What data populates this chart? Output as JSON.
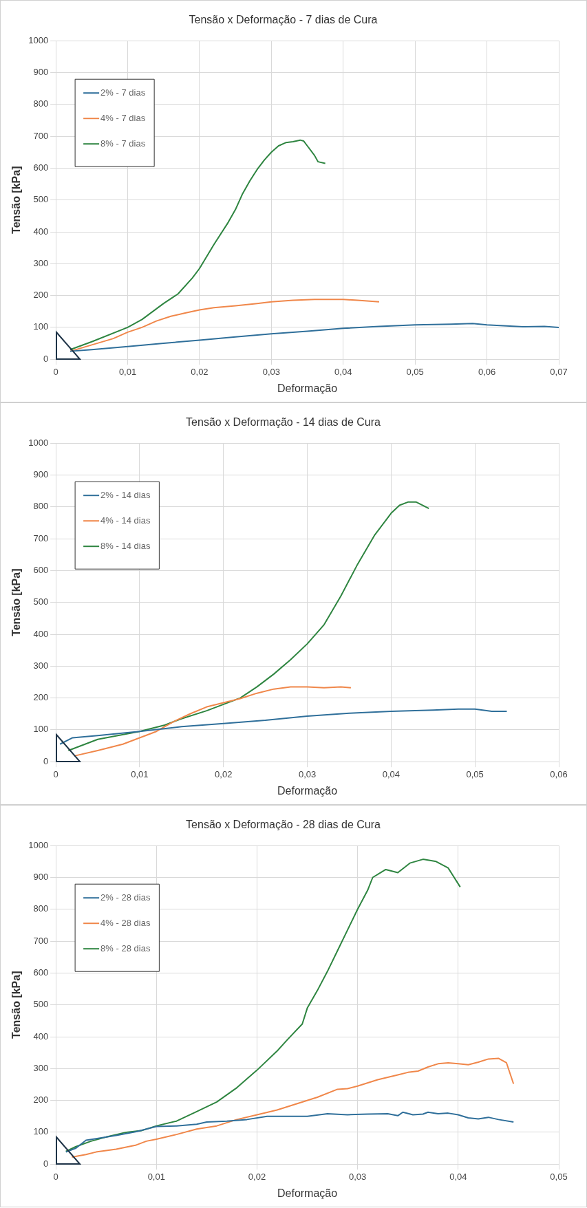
{
  "chart_data": [
    {
      "type": "line",
      "title": "Tensão x Deformação - 7 dias de Cura",
      "xlabel": "Deformação",
      "ylabel": "Tensão [kPa]",
      "xlim": [
        0,
        0.07
      ],
      "xticks": [
        {
          "value": 0,
          "label": "0"
        },
        {
          "value": 0.01,
          "label": "0,01"
        },
        {
          "value": 0.02,
          "label": "0,02"
        },
        {
          "value": 0.03,
          "label": "0,03"
        },
        {
          "value": 0.04,
          "label": "0,04"
        },
        {
          "value": 0.05,
          "label": "0,05"
        },
        {
          "value": 0.06,
          "label": "0,06"
        },
        {
          "value": 0.07,
          "label": "0,07"
        }
      ],
      "ylim": [
        0,
        1000
      ],
      "yticks": [
        0,
        100,
        200,
        300,
        400,
        500,
        600,
        700,
        800,
        900,
        1000
      ],
      "grid": true,
      "legend": "top left",
      "marker": "none",
      "line_style": "solid",
      "series": [
        {
          "name": "2% - 7 dias",
          "color": "#2f6f9a",
          "x": [
            0.002,
            0.005,
            0.01,
            0.015,
            0.02,
            0.025,
            0.03,
            0.035,
            0.04,
            0.045,
            0.05,
            0.055,
            0.058,
            0.06,
            0.065,
            0.068,
            0.07
          ],
          "values": [
            25,
            30,
            40,
            50,
            60,
            70,
            80,
            88,
            97,
            103,
            108,
            110,
            112,
            108,
            102,
            103,
            100
          ]
        },
        {
          "name": "4% - 7 dias",
          "color": "#f0874a",
          "x": [
            0.002,
            0.005,
            0.008,
            0.01,
            0.012,
            0.014,
            0.016,
            0.018,
            0.02,
            0.022,
            0.025,
            0.028,
            0.03,
            0.033,
            0.036,
            0.04,
            0.042,
            0.045
          ],
          "values": [
            25,
            45,
            65,
            85,
            100,
            120,
            135,
            145,
            155,
            162,
            168,
            175,
            180,
            185,
            188,
            188,
            185,
            180
          ]
        },
        {
          "name": "8% - 7 dias",
          "color": "#2e8540",
          "x": [
            0.002,
            0.005,
            0.01,
            0.012,
            0.015,
            0.017,
            0.019,
            0.02,
            0.022,
            0.024,
            0.025,
            0.026,
            0.027,
            0.028,
            0.029,
            0.03,
            0.031,
            0.032,
            0.033,
            0.034,
            0.0345,
            0.035,
            0.036,
            0.0365,
            0.0375
          ],
          "values": [
            30,
            55,
            100,
            125,
            175,
            205,
            255,
            285,
            360,
            430,
            470,
            520,
            560,
            595,
            625,
            650,
            670,
            680,
            683,
            688,
            685,
            670,
            640,
            620,
            615
          ]
        }
      ]
    },
    {
      "type": "line",
      "title": "Tensão x Deformação - 14 dias de Cura",
      "xlabel": "Deformação",
      "ylabel": "Tensão [kPa]",
      "xlim": [
        0,
        0.06
      ],
      "xticks": [
        {
          "value": 0,
          "label": "0"
        },
        {
          "value": 0.01,
          "label": "0,01"
        },
        {
          "value": 0.02,
          "label": "0,02"
        },
        {
          "value": 0.03,
          "label": "0,03"
        },
        {
          "value": 0.04,
          "label": "0,04"
        },
        {
          "value": 0.05,
          "label": "0,05"
        },
        {
          "value": 0.06,
          "label": "0,06"
        }
      ],
      "ylim": [
        0,
        1000
      ],
      "yticks": [
        0,
        100,
        200,
        300,
        400,
        500,
        600,
        700,
        800,
        900,
        1000
      ],
      "grid": true,
      "legend": "top left",
      "marker": "none",
      "line_style": "solid",
      "series": [
        {
          "name": "2% - 14 dias",
          "color": "#2f6f9a",
          "x": [
            0.0005,
            0.002,
            0.005,
            0.01,
            0.015,
            0.02,
            0.025,
            0.03,
            0.035,
            0.04,
            0.045,
            0.048,
            0.05,
            0.052,
            0.0538
          ],
          "values": [
            55,
            75,
            82,
            95,
            110,
            120,
            130,
            143,
            152,
            158,
            162,
            165,
            165,
            158,
            158
          ]
        },
        {
          "name": "4% - 14 dias",
          "color": "#f0874a",
          "x": [
            0.0022,
            0.005,
            0.008,
            0.01,
            0.012,
            0.014,
            0.016,
            0.018,
            0.02,
            0.022,
            0.024,
            0.026,
            0.028,
            0.03,
            0.032,
            0.034,
            0.0352
          ],
          "values": [
            18,
            35,
            55,
            75,
            95,
            125,
            150,
            172,
            185,
            198,
            215,
            228,
            235,
            235,
            232,
            235,
            232
          ]
        },
        {
          "name": "8% - 14 dias",
          "color": "#2e8540",
          "x": [
            0.0015,
            0.005,
            0.01,
            0.013,
            0.015,
            0.018,
            0.02,
            0.022,
            0.024,
            0.026,
            0.028,
            0.03,
            0.032,
            0.034,
            0.036,
            0.038,
            0.04,
            0.041,
            0.042,
            0.043,
            0.0445
          ],
          "values": [
            35,
            70,
            95,
            115,
            135,
            160,
            180,
            200,
            235,
            275,
            320,
            370,
            430,
            520,
            620,
            710,
            780,
            805,
            815,
            815,
            795
          ]
        }
      ]
    },
    {
      "type": "line",
      "title": "Tensão x Deformação - 28 dias de Cura",
      "xlabel": "Deformação",
      "ylabel": "Tensão [kPa]",
      "xlim": [
        0,
        0.05
      ],
      "xticks": [
        {
          "value": 0,
          "label": "0"
        },
        {
          "value": 0.01,
          "label": "0,01"
        },
        {
          "value": 0.02,
          "label": "0,02"
        },
        {
          "value": 0.03,
          "label": "0,03"
        },
        {
          "value": 0.04,
          "label": "0,04"
        },
        {
          "value": 0.05,
          "label": "0,05"
        }
      ],
      "ylim": [
        0,
        1000
      ],
      "yticks": [
        0,
        100,
        200,
        300,
        400,
        500,
        600,
        700,
        800,
        900,
        1000
      ],
      "grid": true,
      "legend": "top left",
      "marker": "none",
      "line_style": "solid",
      "series": [
        {
          "name": "2% - 28 dias",
          "color": "#2f6f9a",
          "x": [
            0.001,
            0.002,
            0.003,
            0.004,
            0.006,
            0.008,
            0.01,
            0.012,
            0.014,
            0.015,
            0.017,
            0.019,
            0.021,
            0.023,
            0.025,
            0.027,
            0.029,
            0.031,
            0.033,
            0.034,
            0.0345,
            0.0355,
            0.0365,
            0.037,
            0.038,
            0.039,
            0.04,
            0.041,
            0.042,
            0.043,
            0.044,
            0.0455
          ],
          "values": [
            38,
            50,
            75,
            80,
            90,
            102,
            118,
            120,
            125,
            132,
            135,
            140,
            150,
            150,
            150,
            158,
            155,
            157,
            158,
            152,
            163,
            155,
            157,
            163,
            158,
            160,
            155,
            145,
            142,
            147,
            140,
            132
          ]
        },
        {
          "name": "4% - 28 dias",
          "color": "#f0874a",
          "x": [
            0.0016,
            0.003,
            0.004,
            0.006,
            0.008,
            0.009,
            0.01,
            0.012,
            0.014,
            0.016,
            0.018,
            0.02,
            0.022,
            0.024,
            0.026,
            0.028,
            0.029,
            0.03,
            0.032,
            0.034,
            0.035,
            0.036,
            0.037,
            0.038,
            0.039,
            0.04,
            0.041,
            0.042,
            0.043,
            0.044,
            0.0448,
            0.0455
          ],
          "values": [
            22,
            30,
            38,
            47,
            60,
            72,
            78,
            93,
            110,
            120,
            140,
            155,
            170,
            190,
            210,
            235,
            237,
            245,
            265,
            280,
            288,
            292,
            305,
            315,
            318,
            315,
            312,
            320,
            330,
            332,
            318,
            252
          ]
        },
        {
          "name": "8% - 28 dias",
          "color": "#2e8540",
          "x": [
            0.001,
            0.002,
            0.0035,
            0.005,
            0.007,
            0.0085,
            0.01,
            0.012,
            0.014,
            0.016,
            0.018,
            0.02,
            0.022,
            0.023,
            0.0245,
            0.025,
            0.026,
            0.027,
            0.028,
            0.029,
            0.03,
            0.031,
            0.0315,
            0.0328,
            0.034,
            0.0352,
            0.0365,
            0.0378,
            0.039,
            0.0402
          ],
          "values": [
            40,
            55,
            72,
            85,
            100,
            105,
            120,
            135,
            165,
            195,
            240,
            295,
            355,
            390,
            440,
            490,
            545,
            605,
            670,
            735,
            800,
            860,
            900,
            925,
            915,
            945,
            957,
            950,
            930,
            870
          ]
        }
      ]
    }
  ]
}
